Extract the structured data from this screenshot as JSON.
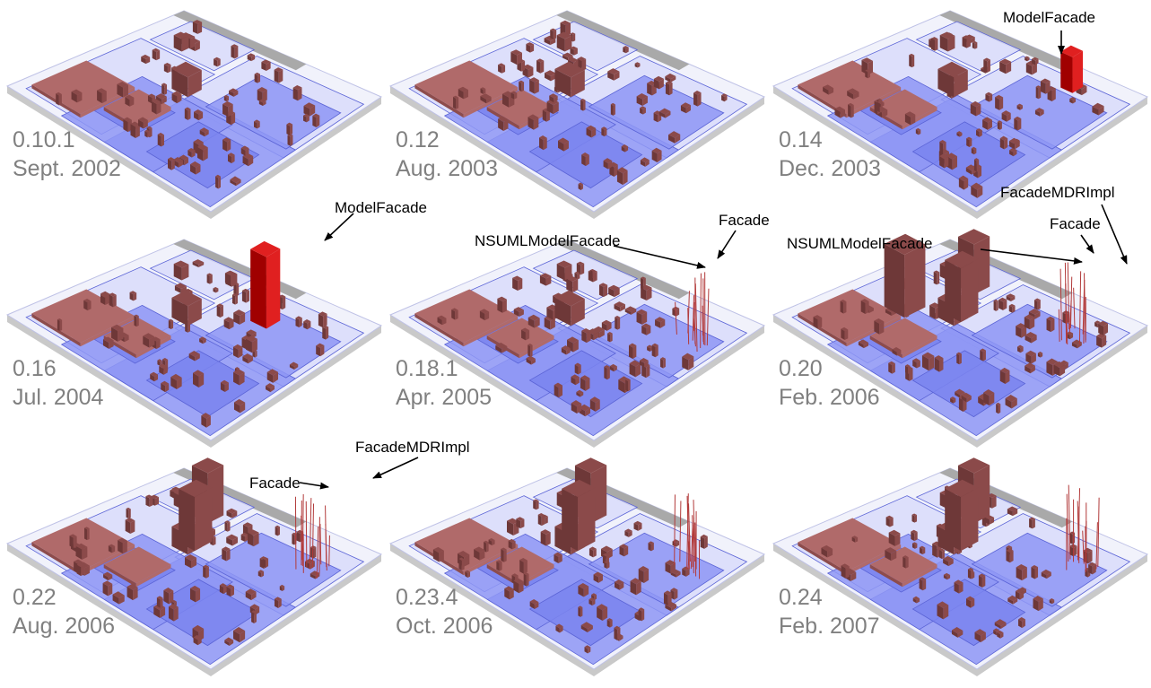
{
  "panels": [
    {
      "version": "0.10.1",
      "date": "Sept. 2002",
      "spikes": false,
      "modelFacade": 0,
      "big": 0
    },
    {
      "version": "0.12",
      "date": "Aug. 2003",
      "spikes": false,
      "modelFacade": 0,
      "big": 0
    },
    {
      "version": "0.14",
      "date": "Dec. 2003",
      "spikes": false,
      "modelFacade": 1,
      "big": 0
    },
    {
      "version": "0.16",
      "date": "Jul. 2004",
      "spikes": false,
      "modelFacade": 2,
      "big": 0
    },
    {
      "version": "0.18.1",
      "date": "Apr. 2005",
      "spikes": true,
      "modelFacade": 0,
      "big": 0
    },
    {
      "version": "0.20",
      "date": "Feb. 2006",
      "spikes": true,
      "modelFacade": 0,
      "big": 2
    },
    {
      "version": "0.22",
      "date": "Aug. 2006",
      "spikes": true,
      "modelFacade": 0,
      "big": 1
    },
    {
      "version": "0.23.4",
      "date": "Oct. 2006",
      "spikes": true,
      "modelFacade": 0,
      "big": 1
    },
    {
      "version": "0.24",
      "date": "Feb. 2007",
      "spikes": true,
      "modelFacade": 0,
      "big": 1
    }
  ],
  "annotations": {
    "model_facade": "ModelFacade",
    "nsuml_model_facade": "NSUMLModelFacade",
    "facade": "Facade",
    "facade_mdr_impl": "FacadeMDRImpl"
  },
  "colors": {
    "package_fill": "#8e97f5",
    "package_light": "#d9dcfa",
    "package_edge": "#5a63d6",
    "class_box": "#8b4a4a",
    "model_facade": "#e02020",
    "base": "#a9a9a9"
  }
}
